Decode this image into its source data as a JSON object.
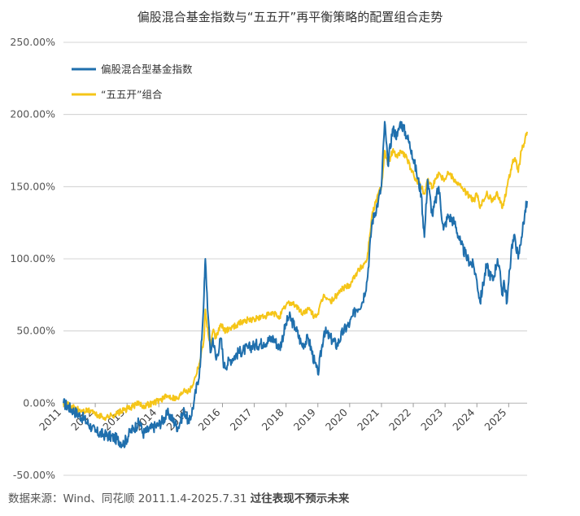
{
  "chart_data": {
    "type": "line",
    "title": "偏股混合基金指数与“五五开”再平衡策略的配置组合走势",
    "xlabel": "",
    "ylabel": "",
    "xlim": [
      2011.0,
      2025.58
    ],
    "ylim": [
      -50,
      250
    ],
    "y_ticks": [
      -50,
      0,
      50,
      100,
      150,
      200,
      250
    ],
    "y_tick_labels": [
      "-50.00%",
      "0.00%",
      "50.00%",
      "100.00%",
      "150.00%",
      "200.00%",
      "250.00%"
    ],
    "x_ticks": [
      2011,
      2012,
      2013,
      2014,
      2015,
      2016,
      2017,
      2018,
      2019,
      2020,
      2021,
      2022,
      2023,
      2024,
      2025
    ],
    "x_tick_labels": [
      "2011",
      "2012",
      "2013",
      "2014",
      "2015",
      "2016",
      "2017",
      "2018",
      "2019",
      "2020",
      "2021",
      "2022",
      "2023",
      "2024",
      "2025"
    ],
    "grid": "horizontal",
    "legend_position": "top-left",
    "series": [
      {
        "name": "偏股混合型基金指数",
        "color": "#1f6fad",
        "x": [
          2011.0,
          2011.3,
          2011.6,
          2011.9,
          2012.0,
          2012.3,
          2012.6,
          2012.9,
          2013.1,
          2013.4,
          2013.5,
          2013.8,
          2014.0,
          2014.3,
          2014.6,
          2014.8,
          2014.95,
          2015.1,
          2015.3,
          2015.42,
          2015.46,
          2015.55,
          2015.62,
          2015.7,
          2015.8,
          2015.95,
          2016.05,
          2016.25,
          2016.5,
          2016.8,
          2017.0,
          2017.3,
          2017.6,
          2017.8,
          2018.0,
          2018.1,
          2018.3,
          2018.5,
          2018.7,
          2018.9,
          2019.0,
          2019.2,
          2019.4,
          2019.6,
          2019.8,
          2020.0,
          2020.2,
          2020.4,
          2020.55,
          2020.7,
          2020.9,
          2021.0,
          2021.1,
          2021.2,
          2021.35,
          2021.5,
          2021.6,
          2021.8,
          2021.95,
          2022.1,
          2022.25,
          2022.35,
          2022.45,
          2022.6,
          2022.8,
          2022.95,
          2023.1,
          2023.3,
          2023.5,
          2023.7,
          2023.9,
          2024.0,
          2024.1,
          2024.3,
          2024.5,
          2024.65,
          2024.75,
          2024.8,
          2024.85,
          2024.95,
          2025.1,
          2025.2,
          2025.3,
          2025.4,
          2025.5,
          2025.58
        ],
        "values": [
          0,
          -5,
          -10,
          -17,
          -20,
          -22,
          -24,
          -28,
          -20,
          -13,
          -21,
          -17,
          -15,
          -7,
          -17,
          -5,
          -14,
          0,
          25,
          75,
          100,
          60,
          35,
          45,
          30,
          45,
          25,
          30,
          35,
          38,
          40,
          42,
          45,
          38,
          55,
          60,
          52,
          40,
          45,
          28,
          20,
          50,
          45,
          40,
          50,
          55,
          65,
          70,
          85,
          125,
          140,
          150,
          195,
          165,
          190,
          185,
          195,
          185,
          175,
          160,
          145,
          115,
          155,
          130,
          150,
          120,
          130,
          125,
          110,
          100,
          95,
          85,
          70,
          95,
          85,
          100,
          85,
          75,
          85,
          70,
          110,
          115,
          100,
          115,
          130,
          140
        ]
      },
      {
        "name": "“五五开”组合",
        "color": "#f5c518",
        "x": [
          2011.0,
          2011.3,
          2011.6,
          2011.9,
          2012.0,
          2012.3,
          2012.6,
          2012.9,
          2013.1,
          2013.4,
          2013.5,
          2013.8,
          2014.0,
          2014.3,
          2014.6,
          2014.8,
          2014.95,
          2015.1,
          2015.3,
          2015.42,
          2015.46,
          2015.55,
          2015.62,
          2015.7,
          2015.8,
          2015.95,
          2016.05,
          2016.25,
          2016.5,
          2016.8,
          2017.0,
          2017.3,
          2017.6,
          2017.8,
          2018.0,
          2018.1,
          2018.3,
          2018.5,
          2018.7,
          2018.9,
          2019.0,
          2019.2,
          2019.4,
          2019.6,
          2019.8,
          2020.0,
          2020.2,
          2020.4,
          2020.55,
          2020.7,
          2020.9,
          2021.0,
          2021.1,
          2021.2,
          2021.35,
          2021.5,
          2021.6,
          2021.8,
          2021.95,
          2022.1,
          2022.25,
          2022.35,
          2022.45,
          2022.6,
          2022.8,
          2022.95,
          2023.1,
          2023.3,
          2023.5,
          2023.7,
          2023.9,
          2024.0,
          2024.1,
          2024.3,
          2024.5,
          2024.65,
          2024.75,
          2024.8,
          2024.85,
          2024.95,
          2025.1,
          2025.2,
          2025.3,
          2025.4,
          2025.5,
          2025.58
        ],
        "values": [
          0,
          -3,
          -6,
          -5,
          -8,
          -10,
          -8,
          -5,
          -3,
          0,
          -2,
          0,
          2,
          5,
          3,
          10,
          8,
          15,
          30,
          45,
          65,
          48,
          40,
          50,
          45,
          55,
          50,
          52,
          55,
          58,
          58,
          60,
          62,
          60,
          68,
          70,
          68,
          62,
          65,
          60,
          62,
          75,
          70,
          75,
          80,
          82,
          90,
          95,
          100,
          130,
          145,
          150,
          175,
          165,
          175,
          170,
          175,
          170,
          160,
          155,
          150,
          145,
          155,
          150,
          160,
          155,
          160,
          155,
          150,
          145,
          140,
          145,
          135,
          145,
          140,
          145,
          140,
          135,
          140,
          150,
          165,
          170,
          160,
          175,
          180,
          188
        ]
      }
    ],
    "source": "数据来源：Wind、同花顺 2011.1.4-2025.7.31",
    "disclaimer": "过往表现不预示未来"
  }
}
